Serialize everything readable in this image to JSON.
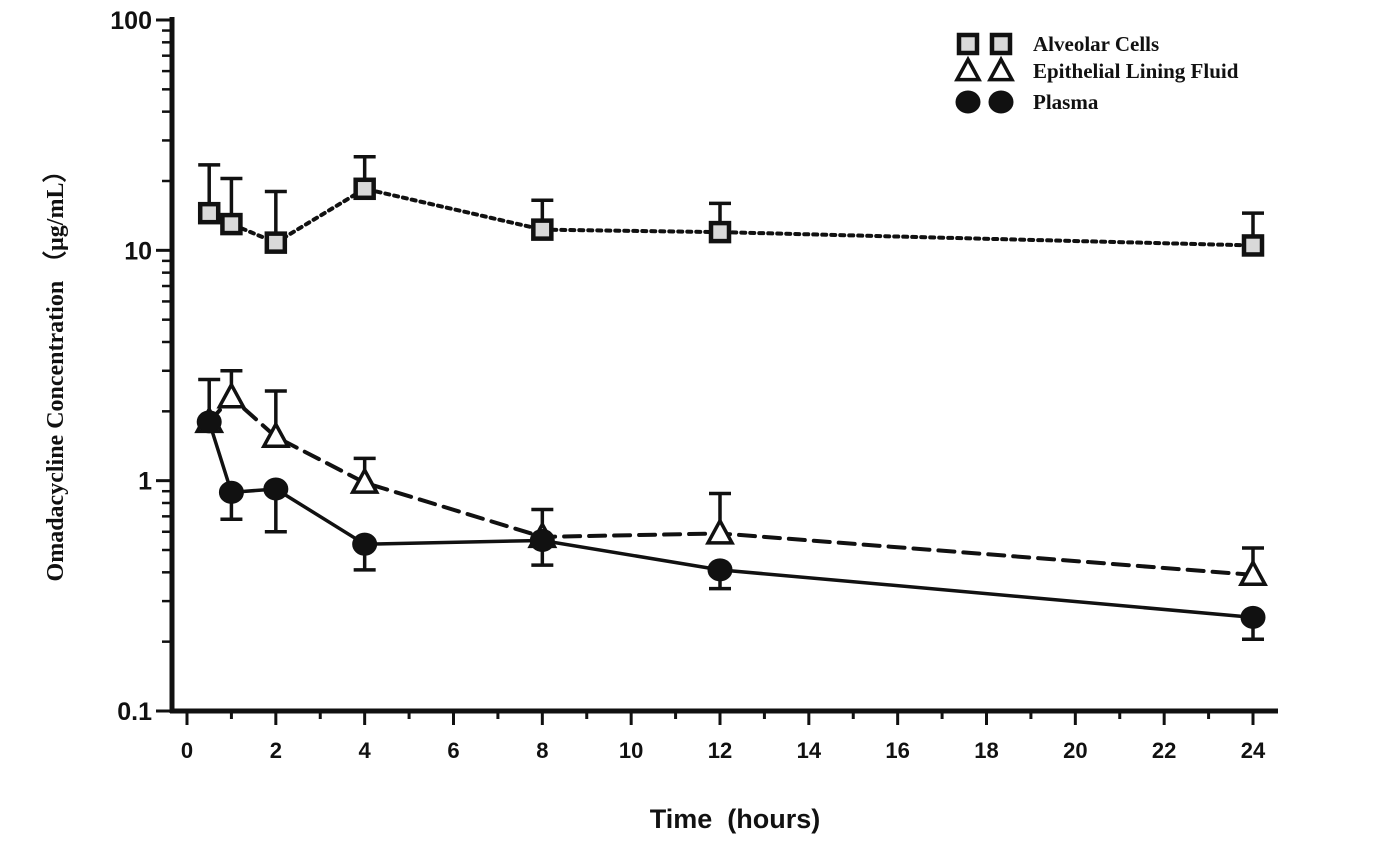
{
  "chart_data": {
    "type": "line",
    "title": "",
    "xlabel": "Time  (hours)",
    "ylabel": "Omadacycline Concentration （μg/mL）",
    "x_scale": "linear",
    "y_scale": "log",
    "xlim": [
      0,
      24
    ],
    "ylim": [
      0.1,
      100
    ],
    "x_ticks": [
      "0",
      "2",
      "4",
      "6",
      "8",
      "10",
      "12",
      "14",
      "16",
      "18",
      "20",
      "22",
      "24"
    ],
    "y_ticks": [
      "0.1",
      "1",
      "10",
      "100"
    ],
    "grid": false,
    "legend_position": "top-right",
    "series": [
      {
        "name": "Alveolar Cells",
        "marker": "square",
        "line_style": "dotted",
        "color": "#111111",
        "marker_fill": "#d9d9d9",
        "x": [
          0.5,
          1,
          2,
          4,
          8,
          12,
          24
        ],
        "y": [
          14.5,
          13,
          10.8,
          18.5,
          12.3,
          12,
          10.5
        ],
        "error_high": [
          23.5,
          20.5,
          18,
          25.5,
          16.5,
          16,
          14.5
        ]
      },
      {
        "name": "Epithelial Lining Fluid",
        "marker": "triangle-open",
        "line_style": "dashed",
        "color": "#111111",
        "marker_fill": "#ffffff",
        "x": [
          0.5,
          1,
          2,
          4,
          8,
          12,
          24
        ],
        "y": [
          1.8,
          2.3,
          1.55,
          0.98,
          0.57,
          0.59,
          0.39
        ],
        "error_high": [
          2.75,
          3.0,
          2.45,
          1.25,
          0.75,
          0.88,
          0.51
        ]
      },
      {
        "name": "Plasma",
        "marker": "circle-filled",
        "line_style": "solid",
        "color": "#111111",
        "marker_fill": "#111111",
        "x": [
          0.5,
          1,
          2,
          4,
          8,
          12,
          24
        ],
        "y": [
          1.8,
          0.89,
          0.92,
          0.53,
          0.55,
          0.41,
          0.255
        ],
        "error_low": [
          null,
          0.68,
          0.6,
          0.41,
          0.43,
          0.34,
          0.205
        ],
        "error_high": [
          null,
          null,
          0.92,
          null,
          null,
          null,
          null
        ]
      }
    ]
  }
}
